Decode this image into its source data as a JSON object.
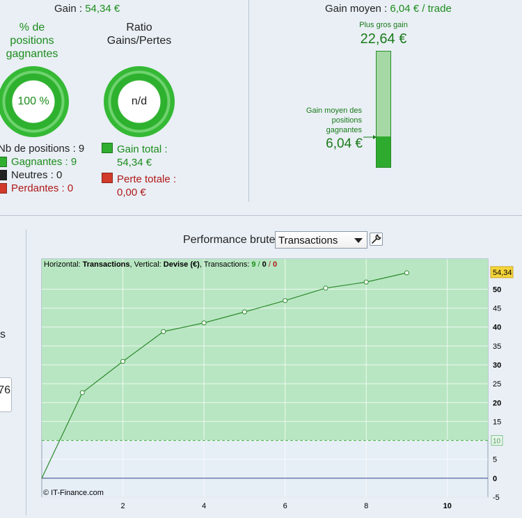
{
  "summary": {
    "gain_label": "Gain : ",
    "gain_value": "54,34 €",
    "pct_title_1": "% de",
    "pct_title_2": "positions",
    "pct_title_3": "gagnantes",
    "pct_value": "100 %",
    "ratio_title_1": "Ratio",
    "ratio_title_2": "Gains/Pertes",
    "ratio_value": "n/d",
    "nb_positions": "Nb de positions : 9",
    "gagnantes": "Gagnantes : 9",
    "neutres": "Neutres : 0",
    "perdantes": "Perdantes : 0",
    "gain_total_label": "Gain total :",
    "gain_total_value": "54,34 €",
    "perte_totale_label": "Perte totale :",
    "perte_totale_value": "0,00 €"
  },
  "avg_panel": {
    "label": "Gain moyen : ",
    "value": "6,04 € / trade",
    "max_gain_label": "Plus gros gain",
    "max_gain_value": "22,64 €",
    "avg_label_1": "Gain moyen des",
    "avg_label_2": "positions",
    "avg_label_3": "gagnantes",
    "avg_value": "6,04 €",
    "avg_fraction": 0.267
  },
  "left_partial": {
    "text_s": "s",
    "box_value": "76"
  },
  "performance": {
    "title": "Performance brute",
    "select_value": "Transactions"
  },
  "chart_info": {
    "h_label": "Horizontal: ",
    "h_value": "Transactions",
    "v_label": ", Vertical: ",
    "v_value": "Devise (€)",
    "t_label": ", Transactions: ",
    "t_win": "9",
    "t_sep1": " / ",
    "t_neutral": "0",
    "t_sep2": " / ",
    "t_loss": "0",
    "credit": "© IT-Finance.com"
  },
  "chart_data": {
    "type": "line",
    "x": [
      0,
      1,
      2,
      3,
      4,
      5,
      6,
      7,
      8,
      9
    ],
    "series": [
      {
        "values": [
          0,
          22.64,
          30.9,
          38.8,
          41.1,
          44.0,
          47.0,
          50.3,
          51.9,
          54.34
        ]
      }
    ],
    "xlim": [
      0,
      11
    ],
    "ylim": [
      -5,
      58
    ],
    "x_ticks": [
      "2",
      "4",
      "6",
      "8",
      "10"
    ],
    "y_ticks": [
      "-5",
      "0",
      "5",
      "10",
      "15",
      "20",
      "25",
      "30",
      "35",
      "40",
      "45",
      "50"
    ],
    "threshold": 10,
    "threshold_label": "10",
    "last_value_label": "54,34",
    "grid": true,
    "colors": {
      "line": "#2d8a2d",
      "area_fill": "#b8e6c2",
      "zero_line": "#2b3f8a",
      "label_badge": "#f5d43a"
    }
  }
}
